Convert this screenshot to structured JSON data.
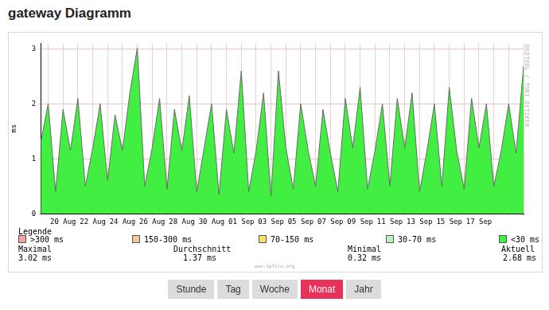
{
  "page": {
    "title": "gateway Diagramm",
    "watermark": "RRDTOOL / TOBI OETIKER",
    "footer": "www.ipfire.org",
    "legend_title": "Legende",
    "legend_items": [
      {
        "label": ">300 ms",
        "color": "#f4a3a3"
      },
      {
        "label": "150-300 ms",
        "color": "#f3c79b"
      },
      {
        "label": "70-150 ms",
        "color": "#f3df6e"
      },
      {
        "label": "30-70 ms",
        "color": "#bdf0bd"
      },
      {
        "label": "<30 ms",
        "color": "#42ee42"
      }
    ],
    "stats": [
      {
        "label": "Maximal",
        "value": "3.02 ms"
      },
      {
        "label": "Durchschnitt",
        "value": "1.37 ms"
      },
      {
        "label": "Minimal",
        "value": "0.32 ms"
      },
      {
        "label": "Aktuell",
        "value": "2.68 ms"
      }
    ],
    "buttons": [
      {
        "label": "Stunde",
        "active": false
      },
      {
        "label": "Tag",
        "active": false
      },
      {
        "label": "Woche",
        "active": false
      },
      {
        "label": "Monat",
        "active": true
      },
      {
        "label": "Jahr",
        "active": false
      }
    ]
  },
  "chart_data": {
    "type": "line",
    "y_label": "ms",
    "categories": [
      null,
      null,
      null,
      "20 Aug",
      null,
      null,
      null,
      "22 Aug",
      null,
      null,
      null,
      "24 Aug",
      null,
      null,
      null,
      "26 Aug",
      null,
      null,
      null,
      "28 Aug",
      null,
      null,
      null,
      "30 Aug",
      null,
      null,
      null,
      "01 Sep",
      null,
      null,
      null,
      "03 Sep",
      null,
      null,
      null,
      "05 Sep",
      null,
      null,
      null,
      "07 Sep",
      null,
      null,
      null,
      "09 Sep",
      null,
      null,
      null,
      "11 Sep",
      null,
      null,
      null,
      "13 Sep",
      null,
      null,
      null,
      "15 Sep",
      null,
      null,
      null,
      "17 Sep",
      null,
      null,
      null,
      null,
      null,
      null
    ],
    "values": [
      1.3,
      2.0,
      0.4,
      1.9,
      1.15,
      2.1,
      0.5,
      1.2,
      2.0,
      0.6,
      1.8,
      1.15,
      2.2,
      3.02,
      0.5,
      1.2,
      2.1,
      0.45,
      1.9,
      1.15,
      2.15,
      0.4,
      1.2,
      2.0,
      0.35,
      1.9,
      1.1,
      2.6,
      0.4,
      1.15,
      2.2,
      0.32,
      2.6,
      1.2,
      0.45,
      2.0,
      1.15,
      0.5,
      1.9,
      1.1,
      0.4,
      2.1,
      1.2,
      2.3,
      0.45,
      1.15,
      2.0,
      0.5,
      2.1,
      1.2,
      2.2,
      0.4,
      1.15,
      2.0,
      0.5,
      2.3,
      1.15,
      0.45,
      2.1,
      1.2,
      2.0,
      0.5,
      1.15,
      2.0,
      1.1,
      2.68
    ],
    "color": "#42ee42",
    "ylim": [
      0,
      3.1
    ],
    "yticks": [
      0,
      1,
      2,
      3
    ],
    "grid": true
  }
}
